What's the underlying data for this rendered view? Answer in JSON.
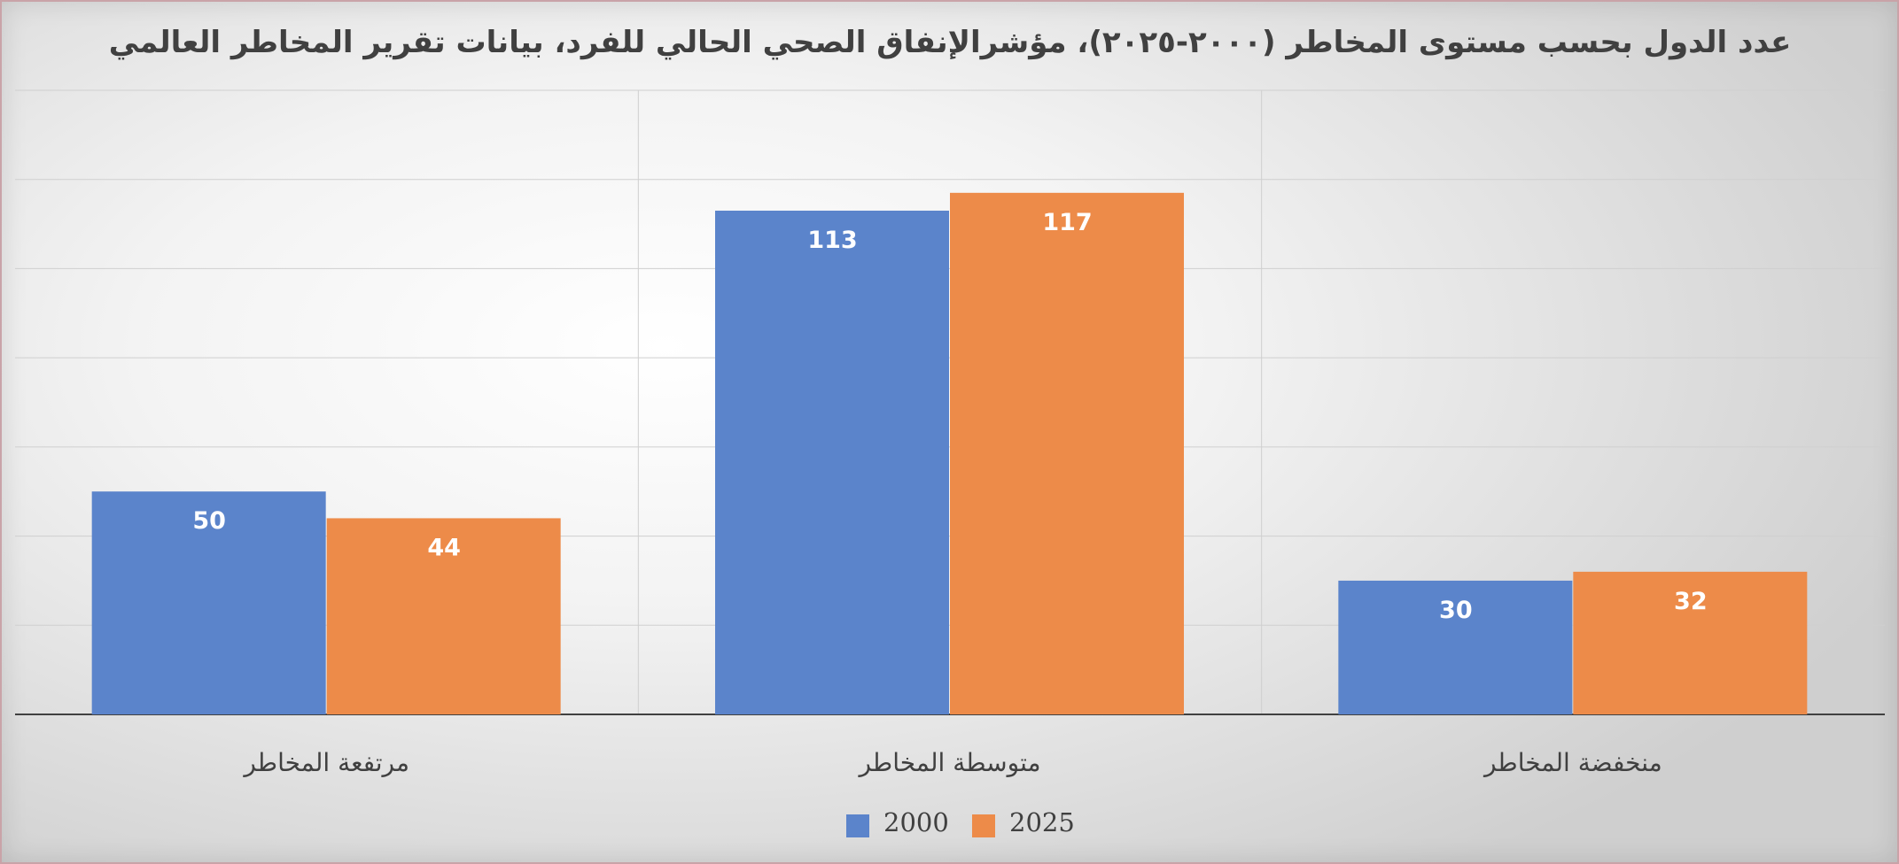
{
  "chart_data": {
    "type": "bar",
    "title": "عدد الدول بحسب مستوى المخاطر (٢٠٠٠-٢٠٢٥)، مؤشرالإنفاق الصحي الحالي للفرد، بيانات تقرير المخاطر العالمي",
    "categories": [
      "مرتفعة المخاطر",
      "متوسطة المخاطر",
      "منخفضة المخاطر"
    ],
    "series": [
      {
        "name": "2000",
        "values": [
          50,
          113,
          30
        ],
        "color": "#5b84cb"
      },
      {
        "name": "2025",
        "values": [
          44,
          117,
          32
        ],
        "color": "#ed8b49"
      }
    ],
    "ylim": [
      0,
      140
    ],
    "grid": true,
    "legend": "bottom-center",
    "xlabel": "",
    "ylabel": ""
  }
}
